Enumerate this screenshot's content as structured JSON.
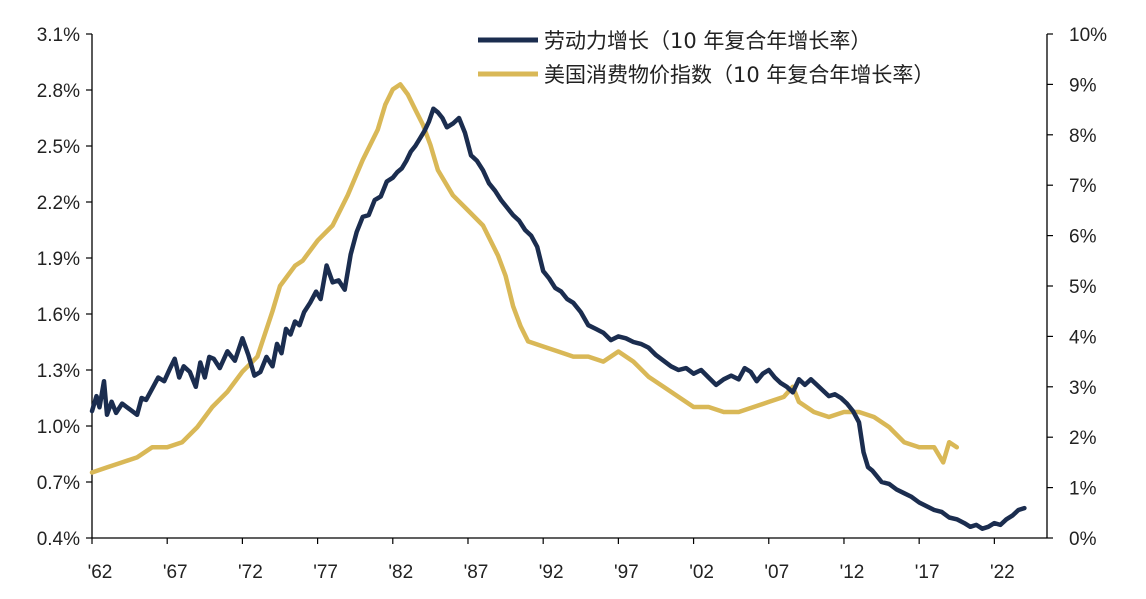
{
  "chart_data": {
    "type": "line",
    "legend": {
      "position": "top-right",
      "items": [
        {
          "label": "劳动力增长（10 年复合年增长率）",
          "color": "#1b2d4f"
        },
        {
          "label": "美国消费物价指数（10 年复合年增长率）",
          "color": "#d9b857"
        }
      ]
    },
    "x_ticks": [
      "'62",
      "'67",
      "'72",
      "'77",
      "'82",
      "'87",
      "'92",
      "'97",
      "'02",
      "'07",
      "'12",
      "'17",
      "'22"
    ],
    "x_tick_years": [
      1962,
      1967,
      1972,
      1977,
      1982,
      1987,
      1992,
      1997,
      2002,
      2007,
      2012,
      2017,
      2022
    ],
    "x_range": [
      1962,
      2025.5
    ],
    "y_left": {
      "ticks": [
        "0.4%",
        "0.7%",
        "1.0%",
        "1.3%",
        "1.6%",
        "1.9%",
        "2.2%",
        "2.5%",
        "2.8%",
        "3.1%"
      ],
      "range": [
        0.4,
        3.1
      ]
    },
    "y_right": {
      "ticks": [
        "0%",
        "1%",
        "2%",
        "3%",
        "4%",
        "5%",
        "6%",
        "7%",
        "8%",
        "9%",
        "10%"
      ],
      "range": [
        0,
        10
      ]
    },
    "series": [
      {
        "name": "劳动力增长（10 年复合年增长率）",
        "axis": "left",
        "color": "#1b2d4f",
        "x": [
          1962.0,
          1962.3,
          1962.5,
          1962.8,
          1963.0,
          1963.3,
          1963.6,
          1964.0,
          1964.5,
          1965.0,
          1965.3,
          1965.6,
          1966.0,
          1966.4,
          1966.8,
          1967.2,
          1967.5,
          1967.8,
          1968.1,
          1968.5,
          1968.9,
          1969.2,
          1969.5,
          1969.8,
          1970.1,
          1970.5,
          1971.0,
          1971.5,
          1972.0,
          1972.4,
          1972.8,
          1973.2,
          1973.6,
          1974.0,
          1974.3,
          1974.6,
          1974.9,
          1975.2,
          1975.5,
          1975.8,
          1976.1,
          1976.5,
          1976.9,
          1977.2,
          1977.6,
          1978.0,
          1978.4,
          1978.8,
          1979.2,
          1979.6,
          1980.0,
          1980.4,
          1980.8,
          1981.2,
          1981.6,
          1982.0,
          1982.3,
          1982.6,
          1982.9,
          1983.2,
          1983.5,
          1983.8,
          1984.1,
          1984.4,
          1984.7,
          1985.0,
          1985.3,
          1985.6,
          1986.0,
          1986.4,
          1986.8,
          1987.2,
          1987.6,
          1988.0,
          1988.4,
          1988.8,
          1989.2,
          1989.6,
          1990.0,
          1990.4,
          1990.8,
          1991.2,
          1991.6,
          1992.0,
          1992.4,
          1992.8,
          1993.2,
          1993.6,
          1994.0,
          1994.5,
          1995.0,
          1995.5,
          1996.0,
          1996.5,
          1997.0,
          1997.5,
          1998.0,
          1998.5,
          1999.0,
          1999.5,
          2000.0,
          2000.5,
          2001.0,
          2001.5,
          2002.0,
          2002.5,
          2003.0,
          2003.5,
          2004.0,
          2004.5,
          2005.0,
          2005.4,
          2005.8,
          2006.2,
          2006.6,
          2007.0,
          2007.4,
          2007.8,
          2008.2,
          2008.6,
          2009.0,
          2009.4,
          2009.8,
          2010.2,
          2010.6,
          2011.0,
          2011.4,
          2011.8,
          2012.2,
          2012.6,
          2013.0,
          2013.3,
          2013.6,
          2013.9,
          2014.2,
          2014.5,
          2015.0,
          2015.5,
          2016.0,
          2016.5,
          2017.0,
          2017.5,
          2018.0,
          2018.5,
          2019.0,
          2019.5,
          2020.0,
          2020.4,
          2020.8,
          2021.2,
          2021.6,
          2022.0,
          2022.4,
          2022.8,
          2023.2,
          2023.6,
          2024.0
        ],
        "y": [
          1.08,
          1.16,
          1.1,
          1.24,
          1.06,
          1.13,
          1.07,
          1.12,
          1.09,
          1.06,
          1.15,
          1.14,
          1.2,
          1.26,
          1.24,
          1.31,
          1.36,
          1.26,
          1.32,
          1.29,
          1.21,
          1.34,
          1.26,
          1.37,
          1.36,
          1.31,
          1.4,
          1.35,
          1.47,
          1.38,
          1.27,
          1.29,
          1.37,
          1.32,
          1.44,
          1.39,
          1.52,
          1.49,
          1.56,
          1.54,
          1.61,
          1.66,
          1.72,
          1.68,
          1.86,
          1.77,
          1.78,
          1.73,
          1.92,
          2.04,
          2.12,
          2.13,
          2.21,
          2.23,
          2.31,
          2.33,
          2.36,
          2.38,
          2.42,
          2.47,
          2.5,
          2.54,
          2.58,
          2.63,
          2.7,
          2.68,
          2.65,
          2.6,
          2.62,
          2.65,
          2.57,
          2.45,
          2.42,
          2.37,
          2.3,
          2.26,
          2.21,
          2.17,
          2.13,
          2.1,
          2.05,
          2.02,
          1.96,
          1.83,
          1.79,
          1.74,
          1.72,
          1.68,
          1.66,
          1.61,
          1.54,
          1.52,
          1.5,
          1.46,
          1.48,
          1.47,
          1.45,
          1.44,
          1.42,
          1.38,
          1.35,
          1.32,
          1.3,
          1.31,
          1.28,
          1.3,
          1.26,
          1.22,
          1.25,
          1.27,
          1.25,
          1.31,
          1.29,
          1.24,
          1.28,
          1.3,
          1.26,
          1.23,
          1.21,
          1.18,
          1.25,
          1.22,
          1.25,
          1.22,
          1.19,
          1.16,
          1.17,
          1.15,
          1.12,
          1.08,
          1.02,
          0.86,
          0.78,
          0.76,
          0.73,
          0.7,
          0.69,
          0.66,
          0.64,
          0.62,
          0.59,
          0.57,
          0.55,
          0.54,
          0.51,
          0.5,
          0.48,
          0.46,
          0.47,
          0.45,
          0.46,
          0.48,
          0.47,
          0.5,
          0.52,
          0.55,
          0.56
        ]
      },
      {
        "name": "美国消费物价指数（10 年复合年增长率）",
        "axis": "right",
        "color": "#d9b857",
        "x": [
          1962.0,
          1963.0,
          1964.0,
          1965.0,
          1966.0,
          1967.0,
          1968.0,
          1969.0,
          1970.0,
          1971.0,
          1972.0,
          1973.0,
          1974.0,
          1974.5,
          1975.0,
          1975.5,
          1976.0,
          1977.0,
          1978.0,
          1979.0,
          1980.0,
          1981.0,
          1981.5,
          1982.0,
          1982.5,
          1983.0,
          1983.5,
          1984.0,
          1984.5,
          1985.0,
          1986.0,
          1987.0,
          1988.0,
          1989.0,
          1989.5,
          1990.0,
          1990.5,
          1991.0,
          1992.0,
          1993.0,
          1994.0,
          1995.0,
          1996.0,
          1997.0,
          1998.0,
          1999.0,
          2000.0,
          2001.0,
          2002.0,
          2003.0,
          2004.0,
          2005.0,
          2006.0,
          2007.0,
          2008.0,
          2008.6,
          2009.0,
          2010.0,
          2011.0,
          2012.0,
          2013.0,
          2014.0,
          2015.0,
          2016.0,
          2017.0,
          2018.0,
          2018.6,
          2019.0,
          2019.5
        ],
        "y": [
          1.3,
          1.4,
          1.5,
          1.6,
          1.8,
          1.8,
          1.9,
          2.2,
          2.6,
          2.9,
          3.3,
          3.6,
          4.5,
          5.0,
          5.2,
          5.4,
          5.5,
          5.9,
          6.2,
          6.8,
          7.5,
          8.1,
          8.6,
          8.9,
          9.0,
          8.8,
          8.5,
          8.2,
          7.8,
          7.3,
          6.8,
          6.5,
          6.2,
          5.6,
          5.2,
          4.6,
          4.2,
          3.9,
          3.8,
          3.7,
          3.6,
          3.6,
          3.5,
          3.7,
          3.5,
          3.2,
          3.0,
          2.8,
          2.6,
          2.6,
          2.5,
          2.5,
          2.6,
          2.7,
          2.8,
          3.0,
          2.7,
          2.5,
          2.4,
          2.5,
          2.5,
          2.4,
          2.2,
          1.9,
          1.8,
          1.8,
          1.5,
          1.9,
          1.8
        ]
      }
    ]
  }
}
